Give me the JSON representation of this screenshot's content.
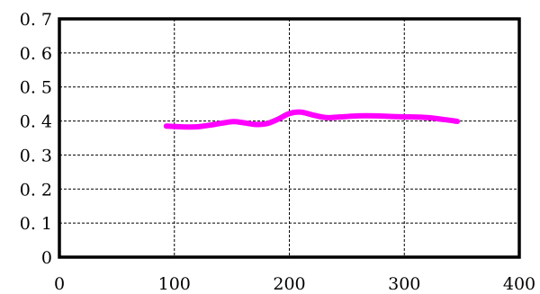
{
  "chart_data": {
    "type": "line",
    "title": "",
    "xlabel": "",
    "ylabel": "",
    "xlim": [
      0,
      400
    ],
    "ylim": [
      0,
      0.7
    ],
    "x_ticks": [
      0,
      100,
      200,
      300,
      400
    ],
    "x_tick_labels": [
      "0",
      "100",
      "200",
      "300",
      "400"
    ],
    "y_ticks": [
      0,
      0.1,
      0.2,
      0.3,
      0.4,
      0.5,
      0.6,
      0.7
    ],
    "y_tick_labels": [
      "0",
      "0. 1",
      "0. 2",
      "0. 3",
      "0. 4",
      "0. 5",
      "0. 6",
      "0. 7"
    ],
    "grid": true,
    "grid_style": "dashed",
    "legend": "none",
    "series": [
      {
        "color": "#ff00ff",
        "x": [
          93,
          105,
          120,
          135,
          150,
          160,
          170,
          180,
          190,
          200,
          210,
          220,
          232,
          245,
          260,
          275,
          290,
          305,
          320,
          335,
          346
        ],
        "y": [
          0.385,
          0.383,
          0.383,
          0.39,
          0.398,
          0.395,
          0.39,
          0.392,
          0.405,
          0.422,
          0.426,
          0.418,
          0.41,
          0.412,
          0.415,
          0.415,
          0.413,
          0.412,
          0.41,
          0.404,
          0.399
        ]
      }
    ]
  }
}
